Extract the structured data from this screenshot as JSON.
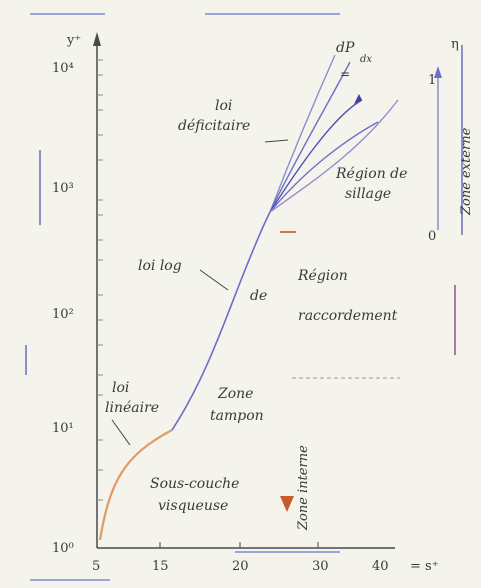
{
  "axes": {
    "y_label": "y⁺",
    "x_label": "= s⁺",
    "y_ticks": [
      "10⁴",
      "10³",
      "10²",
      "10¹",
      "10⁰"
    ],
    "x_ticks": [
      "5",
      "15",
      "20",
      "30",
      "40"
    ]
  },
  "labels": {
    "loi_deficitaire": [
      "loi",
      "déficitaire"
    ],
    "dp": "dP",
    "dp_sub": "dx",
    "region_sillage": [
      "Région de",
      "sillage"
    ],
    "loi_log": "loi log",
    "region_raccordement": [
      "Région",
      "de",
      "raccordement"
    ],
    "zone_tampon": [
      "Zone",
      "tampon"
    ],
    "sous_couche_visqueuse": [
      "Sous-couche",
      "visqueuse"
    ],
    "loi_lineaire": [
      "loi",
      "linéaire"
    ],
    "zone_interne": "Zone interne",
    "zone_externe": "Zone externe",
    "eta": "η",
    "zero": "0",
    "one": "1"
  },
  "colors": {
    "background": "#f4f3ec",
    "curve_blue": "#6b6fc9",
    "curve_orange": "#e29a66",
    "arrow_orange": "#d8733c",
    "text": "#3a3a3a"
  }
}
